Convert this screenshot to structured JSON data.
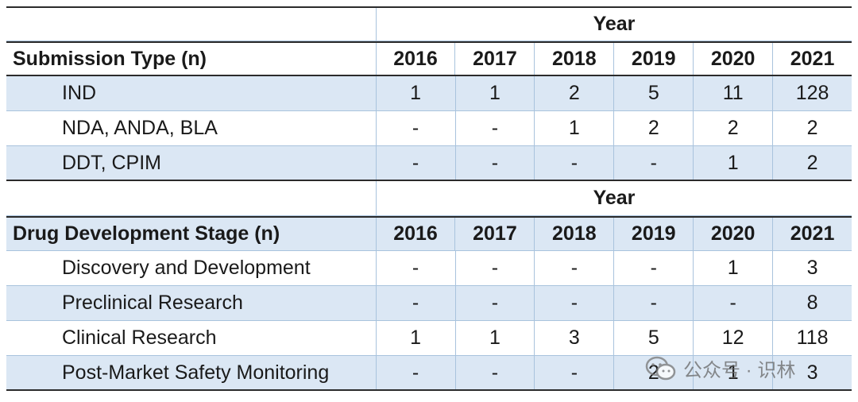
{
  "table1": {
    "year_header": "Year",
    "row_header": "Submission Type (n)",
    "years": [
      "2016",
      "2017",
      "2018",
      "2019",
      "2020",
      "2021"
    ],
    "rows": [
      {
        "label": "IND",
        "values": [
          "1",
          "1",
          "2",
          "5",
          "11",
          "128"
        ]
      },
      {
        "label": "NDA, ANDA, BLA",
        "values": [
          "-",
          "-",
          "1",
          "2",
          "2",
          "2"
        ]
      },
      {
        "label": "DDT, CPIM",
        "values": [
          "-",
          "-",
          "-",
          "-",
          "1",
          "2"
        ]
      }
    ]
  },
  "table2": {
    "year_header": "Year",
    "row_header": "Drug Development Stage (n)",
    "years": [
      "2016",
      "2017",
      "2018",
      "2019",
      "2020",
      "2021"
    ],
    "rows": [
      {
        "label": "Discovery and Development",
        "values": [
          "-",
          "-",
          "-",
          "-",
          "1",
          "3"
        ]
      },
      {
        "label": "Preclinical Research",
        "values": [
          "-",
          "-",
          "-",
          "-",
          "-",
          "8"
        ]
      },
      {
        "label": "Clinical Research",
        "values": [
          "1",
          "1",
          "3",
          "5",
          "12",
          "118"
        ]
      },
      {
        "label": "Post-Market Safety Monitoring",
        "values": [
          "-",
          "-",
          "-",
          "2",
          "1",
          "3"
        ]
      }
    ]
  },
  "watermark": {
    "text": "公众号 · 识林",
    "icon": "wechat-icon"
  }
}
